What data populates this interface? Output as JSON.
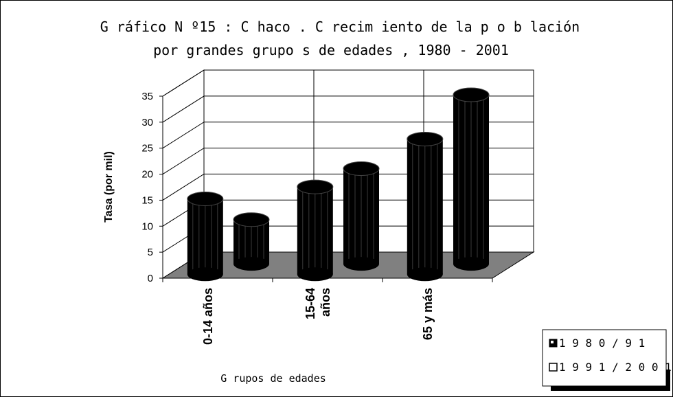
{
  "chart_data": {
    "type": "bar",
    "title_lines": [
      "G ráfico N º15 : C haco . C recim iento de la p o b lación",
      "por grandes grupo s de edades , 1980 - 2001"
    ],
    "categories": [
      "0-14 años",
      "15-64 años",
      "65 y más"
    ],
    "category_lines": [
      [
        "0-14 años"
      ],
      [
        "15-64",
        "años"
      ],
      [
        "65 y más"
      ]
    ],
    "series": [
      {
        "name": "1980/91",
        "values": [
          14.5,
          16.8,
          26.0
        ]
      },
      {
        "name": "1991/2001",
        "values": [
          8.5,
          18.3,
          32.5
        ]
      }
    ],
    "series_colors": [
      "#000000",
      "#000000"
    ],
    "ylabel": "Tasa (por mil)",
    "xlabel": "G rupos de edades",
    "ylim": [
      0,
      35
    ],
    "yticks": [
      "0",
      "5",
      "10",
      "15",
      "20",
      "25",
      "30",
      "35"
    ],
    "grid": true,
    "legend_position": "bottom-right",
    "legend": [
      {
        "label": "1 9 8 0 / 9 1"
      },
      {
        "label": "1 9 9 1 / 2 0 0 1"
      }
    ],
    "floor_color": "#808080",
    "wall_color": "#ffffff"
  }
}
